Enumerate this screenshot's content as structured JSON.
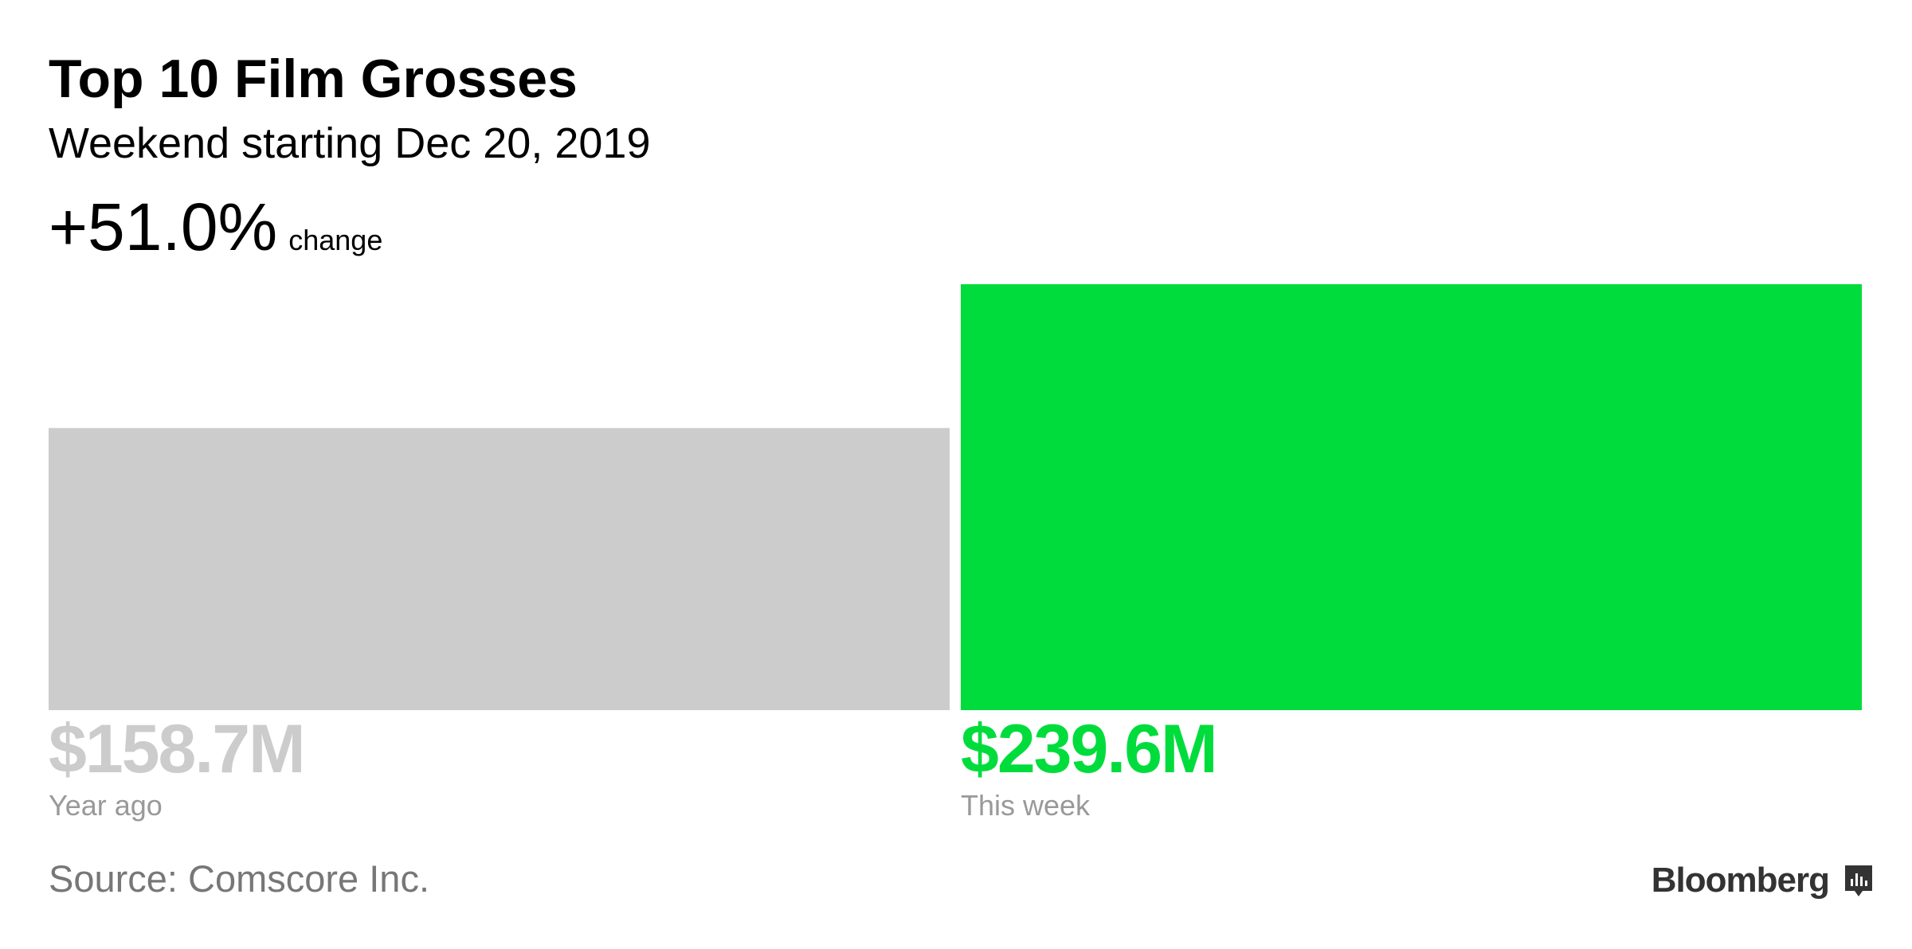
{
  "chart_data": {
    "type": "bar",
    "title": "Top 10 Film Grosses",
    "subtitle": "Weekend starting Dec 20, 2019",
    "change_label": "+51.0%",
    "change_text": "change",
    "categories": [
      "Year ago",
      "This week"
    ],
    "values": [
      158.7,
      239.6
    ],
    "value_labels": [
      "$158.7M",
      "$239.6M"
    ],
    "colors": [
      "#cccccc",
      "#00dc3c"
    ],
    "ylim": [
      0,
      239.6
    ],
    "source": "Source: Comscore Inc.",
    "brand": "Bloomberg"
  }
}
